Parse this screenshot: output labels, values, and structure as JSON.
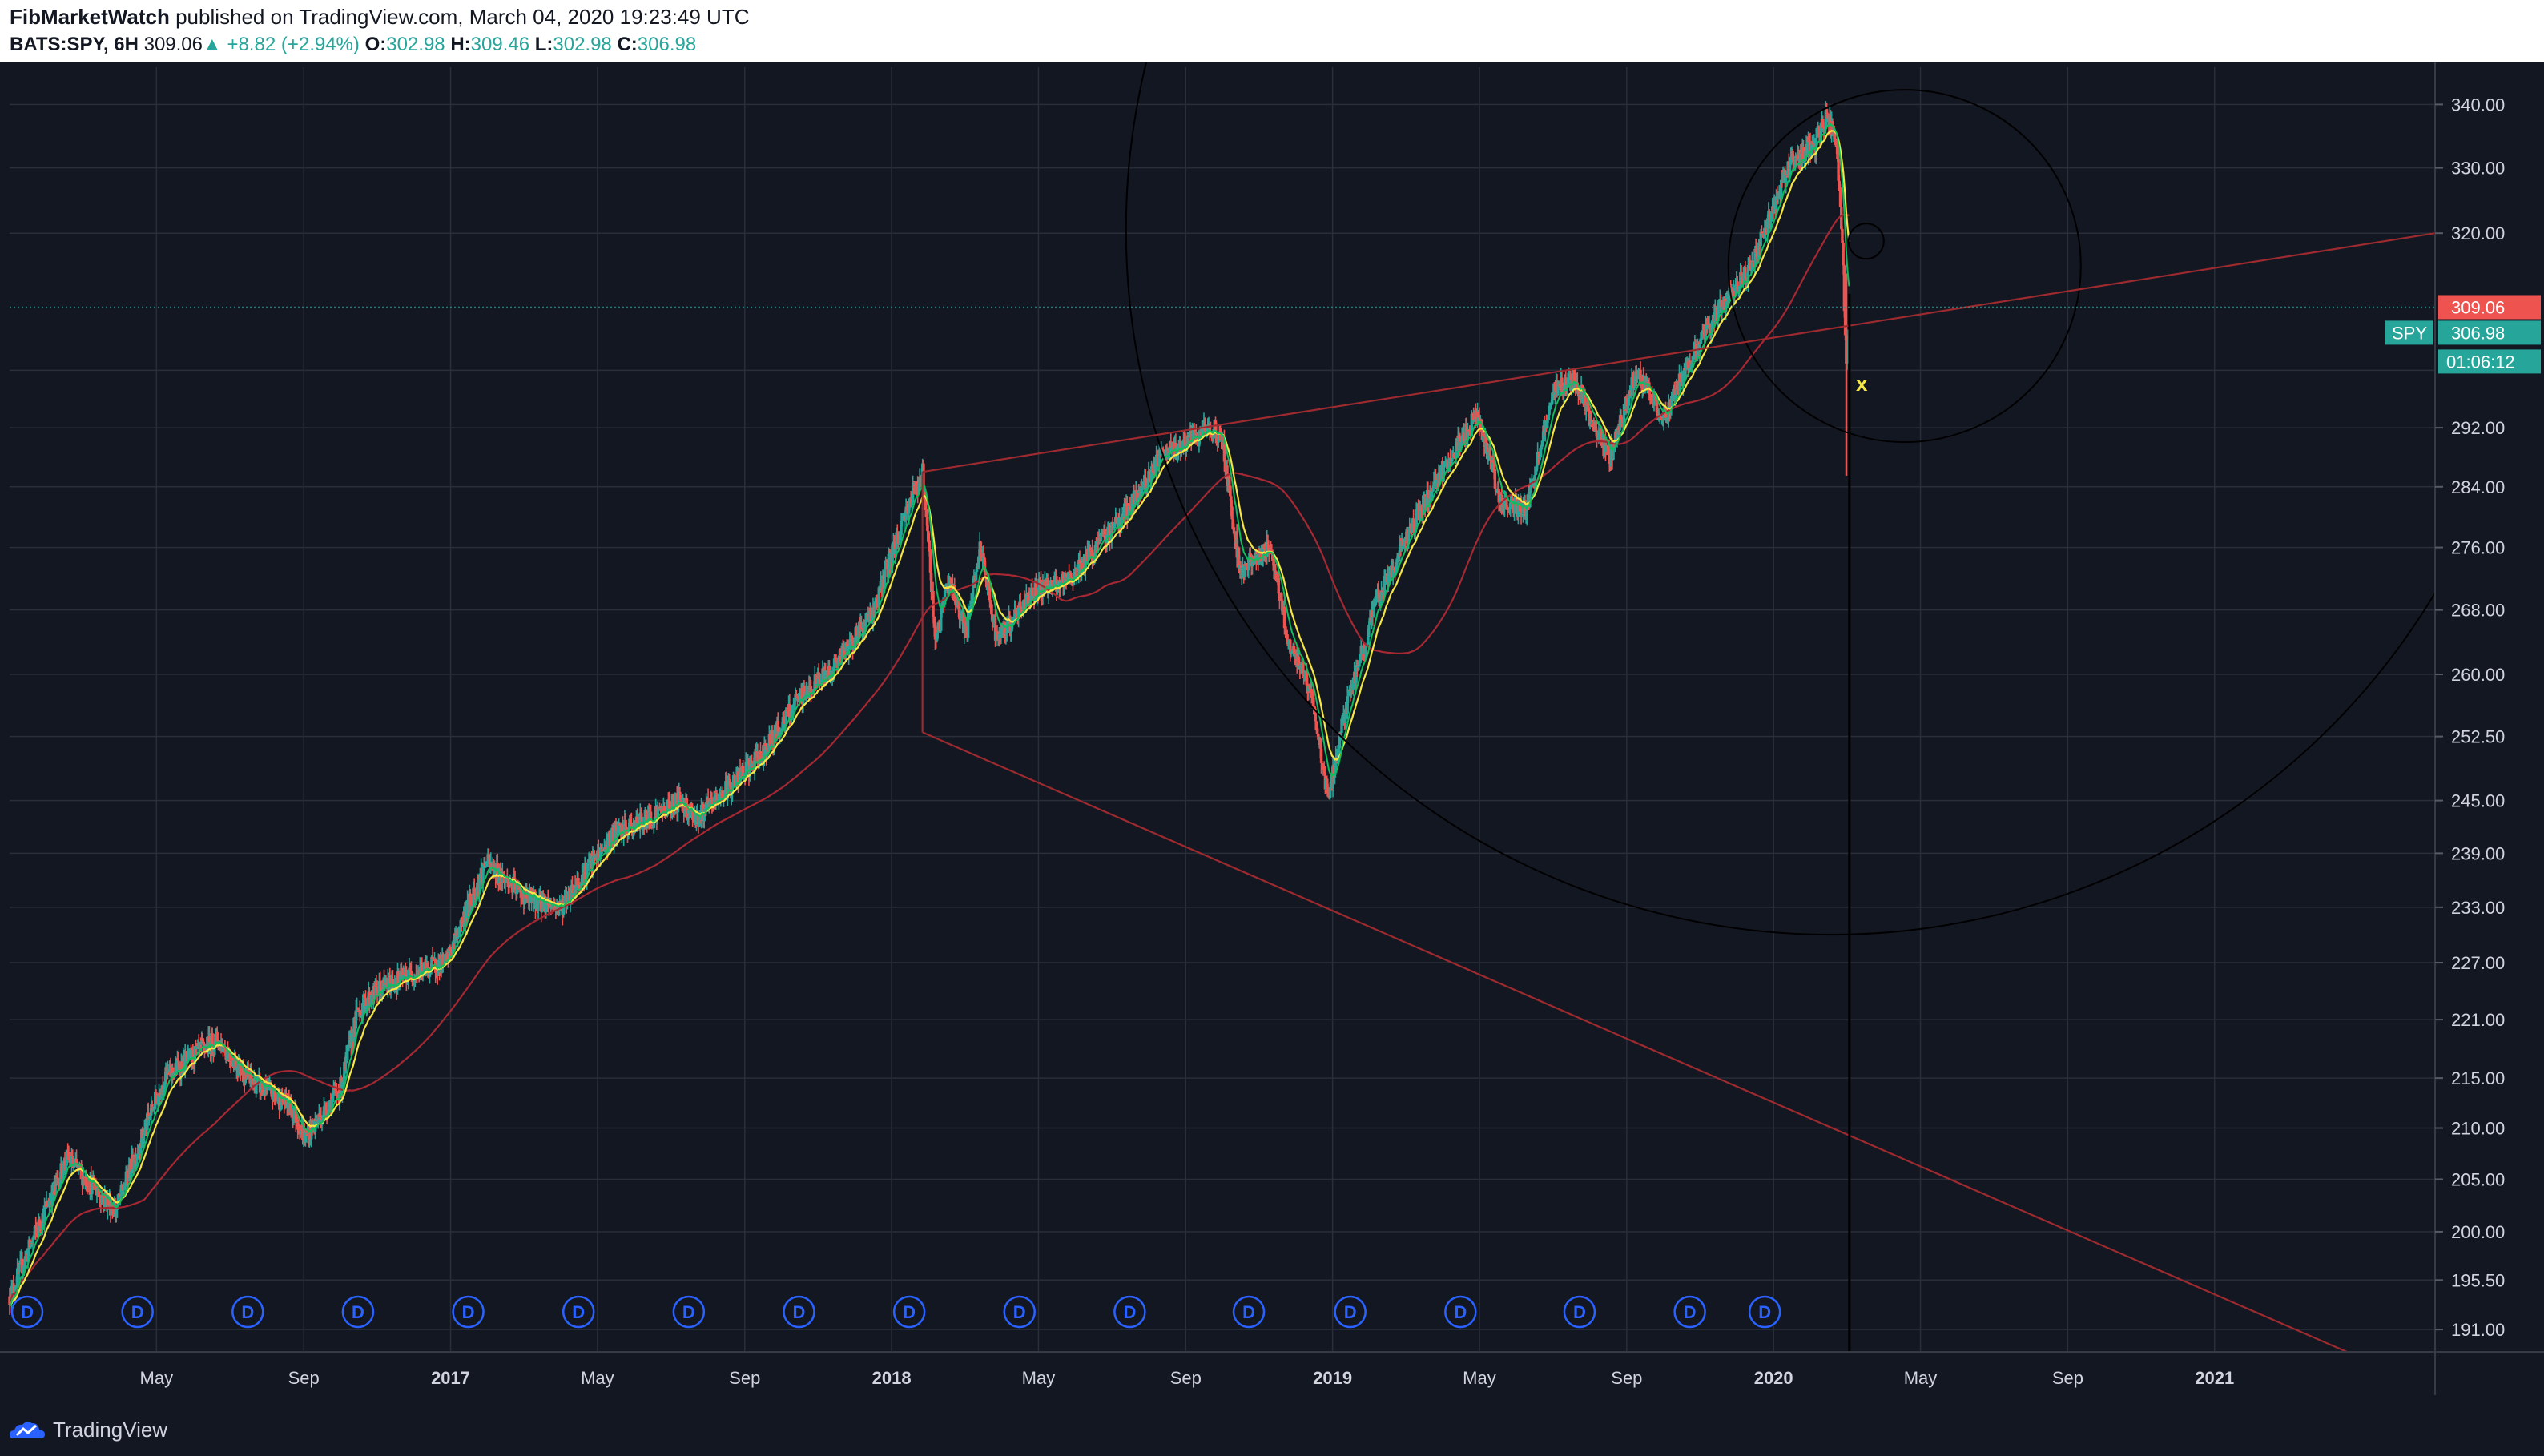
{
  "header": {
    "publisher": "FibMarketWatch",
    "published_text": "published on TradingView.com, March 04, 2020 19:23:49 UTC",
    "symbol": "BATS:SPY, 6H",
    "last": "309.06",
    "arrow": "▲",
    "change": "+8.82 (+2.94%)",
    "o_label": "O:",
    "o_val": "302.98",
    "h_label": "H:",
    "h_val": "309.46",
    "l_label": "L:",
    "l_val": "302.98",
    "c_label": "C:",
    "c_val": "306.98"
  },
  "footer": {
    "brand": "TradingView"
  },
  "colors": {
    "background": "#131722",
    "grid": "#2a2e39",
    "up": "#26a69a",
    "down": "#ef5350",
    "ema_fast": "#0ebd5b",
    "ema_mid": "#f5e642",
    "ma_slow": "#a52832",
    "trendline": "#9c2a2f"
  },
  "chart_data": {
    "type": "candlestick",
    "symbol": "SPY",
    "timeframe": "6H",
    "y_axis": {
      "ticks": [
        "340.00",
        "330.00",
        "320.00",
        "309.06",
        "306.98",
        "292.00",
        "284.00",
        "276.00",
        "268.00",
        "260.00",
        "252.50",
        "245.00",
        "239.00",
        "233.00",
        "227.00",
        "221.00",
        "215.00",
        "210.00",
        "205.00",
        "200.00",
        "195.50",
        "191.00"
      ],
      "grid_ticks": [
        340,
        330,
        320,
        300,
        292,
        284,
        276,
        268,
        260,
        252.5,
        245,
        239,
        233,
        227,
        221,
        215,
        210,
        205,
        200,
        195.5,
        191
      ],
      "scale": "log",
      "range": [
        189,
        346
      ]
    },
    "x_axis": {
      "labels": [
        "May",
        "Sep",
        "2017",
        "May",
        "Sep",
        "2018",
        "May",
        "Sep",
        "2019",
        "May",
        "Sep",
        "2020",
        "May",
        "Sep",
        "2021"
      ],
      "label_t": [
        2016.333,
        2016.667,
        2017.0,
        2017.333,
        2017.667,
        2018.0,
        2018.333,
        2018.667,
        2019.0,
        2019.333,
        2019.667,
        2020.0,
        2020.333,
        2020.667,
        2021.0
      ],
      "range": [
        2016.0,
        2021.5
      ]
    },
    "price_labels": [
      {
        "text": "309.06",
        "value": 309.06,
        "color": "#ef5350"
      },
      {
        "text": "306.98",
        "value": 306.98,
        "color": "#26a69a",
        "tag": "SPY"
      },
      {
        "text": "01:06:12",
        "color": "#26a69a"
      }
    ],
    "dividend_markers": {
      "label": "D",
      "t": [
        2016.04,
        2016.29,
        2016.54,
        2016.79,
        2017.04,
        2017.29,
        2017.54,
        2017.79,
        2018.04,
        2018.29,
        2018.54,
        2018.81,
        2019.04,
        2019.29,
        2019.56,
        2019.81,
        2019.98
      ]
    },
    "trend_points": [
      [
        2016.0,
        194
      ],
      [
        2016.13,
        207
      ],
      [
        2016.24,
        202
      ],
      [
        2016.35,
        215
      ],
      [
        2016.47,
        219
      ],
      [
        2016.54,
        215
      ],
      [
        2016.64,
        212
      ],
      [
        2016.67,
        209
      ],
      [
        2016.75,
        214
      ],
      [
        2016.79,
        222
      ],
      [
        2016.83,
        224
      ],
      [
        2016.92,
        226
      ],
      [
        2016.99,
        227
      ],
      [
        2017.08,
        238
      ],
      [
        2017.17,
        234
      ],
      [
        2017.25,
        233
      ],
      [
        2017.29,
        236
      ],
      [
        2017.37,
        241
      ],
      [
        2017.45,
        243
      ],
      [
        2017.52,
        245
      ],
      [
        2017.56,
        243
      ],
      [
        2017.62,
        246
      ],
      [
        2017.7,
        250
      ],
      [
        2017.79,
        257
      ],
      [
        2017.87,
        261
      ],
      [
        2017.96,
        268
      ],
      [
        2018.04,
        282
      ],
      [
        2018.07,
        286
      ],
      [
        2018.1,
        264
      ],
      [
        2018.13,
        272
      ],
      [
        2018.17,
        265
      ],
      [
        2018.2,
        276
      ],
      [
        2018.24,
        264
      ],
      [
        2018.29,
        268
      ],
      [
        2018.33,
        271
      ],
      [
        2018.39,
        271
      ],
      [
        2018.45,
        275
      ],
      [
        2018.55,
        282
      ],
      [
        2018.61,
        288
      ],
      [
        2018.67,
        290
      ],
      [
        2018.73,
        292
      ],
      [
        2018.75,
        290
      ],
      [
        2018.79,
        273
      ],
      [
        2018.86,
        276
      ],
      [
        2018.9,
        264
      ],
      [
        2018.95,
        258
      ],
      [
        2018.99,
        245
      ],
      [
        2019.03,
        256
      ],
      [
        2019.1,
        269
      ],
      [
        2019.2,
        281
      ],
      [
        2019.29,
        290
      ],
      [
        2019.33,
        294
      ],
      [
        2019.38,
        282
      ],
      [
        2019.44,
        281
      ],
      [
        2019.5,
        297
      ],
      [
        2019.55,
        299
      ],
      [
        2019.59,
        292
      ],
      [
        2019.63,
        288
      ],
      [
        2019.69,
        300
      ],
      [
        2019.75,
        293
      ],
      [
        2019.8,
        300
      ],
      [
        2019.87,
        308
      ],
      [
        2019.95,
        315
      ],
      [
        2020.04,
        331
      ],
      [
        2020.09,
        333
      ],
      [
        2020.12,
        338
      ],
      [
        2020.14,
        335
      ],
      [
        2020.155,
        320
      ],
      [
        2020.165,
        300
      ],
      [
        2020.172,
        306
      ]
    ],
    "indicators": [
      {
        "name": "EMA fast",
        "color": "#0ebd5b"
      },
      {
        "name": "EMA mid",
        "color": "#f5e642"
      },
      {
        "name": "MA slow",
        "color": "#a52832"
      }
    ],
    "annotations": [
      {
        "type": "trendline",
        "from": [
          2018.07,
          286
        ],
        "to": [
          2021.5,
          320
        ]
      },
      {
        "type": "trendline",
        "from": [
          2018.07,
          253
        ],
        "to": [
          2021.3,
          189
        ]
      },
      {
        "type": "trendline",
        "from": [
          2018.07,
          253
        ],
        "to": [
          2018.07,
          286
        ]
      },
      {
        "type": "vertical_line",
        "t": 2020.172
      },
      {
        "type": "marker",
        "text": "x",
        "t": 2020.2,
        "value": 298
      }
    ]
  }
}
